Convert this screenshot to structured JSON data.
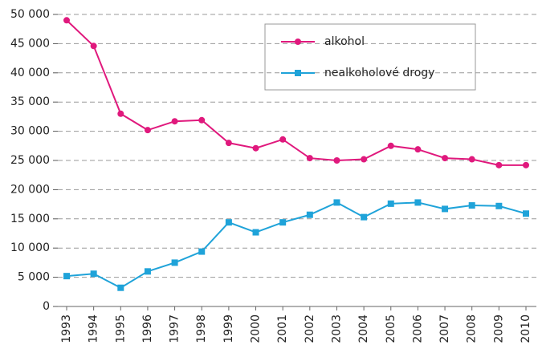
{
  "chart_data": {
    "type": "line",
    "categories": [
      "1993",
      "1994",
      "1995",
      "1996",
      "1997",
      "1998",
      "1999",
      "2000",
      "2001",
      "2002",
      "2003",
      "2004",
      "2005",
      "2006",
      "2007",
      "2008",
      "2009",
      "2010"
    ],
    "series": [
      {
        "name": "alkohol",
        "color": "#e0197d",
        "marker": "circle",
        "values": [
          49000,
          44600,
          33000,
          30200,
          31700,
          31900,
          28000,
          27100,
          28600,
          25400,
          25000,
          25200,
          27500,
          26900,
          25400,
          25200,
          24200,
          24200
        ]
      },
      {
        "name": "nealkoholové drogy",
        "color": "#1fa3d9",
        "marker": "square",
        "values": [
          5200,
          5600,
          3200,
          6000,
          7500,
          9400,
          14400,
          12700,
          14400,
          15700,
          17800,
          15300,
          17600,
          17800,
          16700,
          17300,
          17200,
          15900
        ]
      }
    ],
    "ylim": [
      0,
      50000
    ],
    "yticks": [
      0,
      {
        "value": 5000,
        "label": "5 000"
      },
      {
        "value": 10000,
        "label": "10 000"
      },
      {
        "value": 15000,
        "label": "15 000"
      },
      {
        "value": 20000,
        "label": "20 000"
      },
      {
        "value": 25000,
        "label": "25 000"
      },
      {
        "value": 30000,
        "label": "30 000"
      },
      {
        "value": 35000,
        "label": "35 000"
      },
      {
        "value": 40000,
        "label": "40 000"
      },
      {
        "value": 45000,
        "label": "45 000"
      },
      {
        "value": 50000,
        "label": "50 000"
      }
    ],
    "grid": true
  }
}
